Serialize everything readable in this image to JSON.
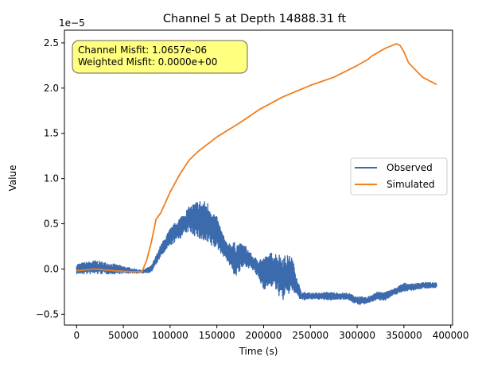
{
  "chart_data": {
    "type": "line",
    "title": "Channel 5 at Depth 14888.31 ft",
    "xlabel": "Time (s)",
    "ylabel": "Value",
    "y_offset_text": "1e−5",
    "xlim": [
      -13000,
      402000
    ],
    "ylim": [
      -0.62,
      2.64
    ],
    "x_ticks": [
      0,
      50000,
      100000,
      150000,
      200000,
      250000,
      300000,
      350000,
      400000
    ],
    "x_tick_labels": [
      "0",
      "50000",
      "100000",
      "150000",
      "200000",
      "250000",
      "300000",
      "350000",
      "400000"
    ],
    "y_ticks": [
      -0.5,
      0.0,
      0.5,
      1.0,
      1.5,
      2.0,
      2.5
    ],
    "y_tick_labels": [
      "−0.5",
      "0.0",
      "0.5",
      "1.0",
      "1.5",
      "2.0",
      "2.5"
    ],
    "grid": false,
    "legend_position": "center-right",
    "annotation": {
      "lines": [
        "Channel Misfit: 1.0657e-06",
        "Weighted Misfit: 0.0000e+00"
      ],
      "box_color": "#ffff80"
    },
    "series": [
      {
        "name": "Observed",
        "color": "#3b6aad",
        "style": "noisy",
        "x": [
          0,
          20000,
          40000,
          60000,
          70000,
          80000,
          90000,
          100000,
          110000,
          120000,
          130000,
          140000,
          150000,
          160000,
          170000,
          180000,
          190000,
          200000,
          210000,
          220000,
          230000,
          240000,
          250000,
          260000,
          270000,
          280000,
          290000,
          300000,
          310000,
          320000,
          330000,
          340000,
          350000,
          360000,
          370000,
          385000
        ],
        "y": [
          0.0,
          0.02,
          0.0,
          -0.02,
          -0.03,
          0.0,
          0.2,
          0.35,
          0.45,
          0.55,
          0.55,
          0.5,
          0.4,
          0.2,
          0.1,
          0.15,
          0.05,
          -0.05,
          0.0,
          -0.1,
          -0.05,
          -0.3,
          -0.3,
          -0.3,
          -0.3,
          -0.3,
          -0.3,
          -0.35,
          -0.35,
          -0.3,
          -0.3,
          -0.25,
          -0.2,
          -0.2,
          -0.18,
          -0.18
        ],
        "amp": [
          0.06,
          0.08,
          0.06,
          0.03,
          0.02,
          0.04,
          0.07,
          0.1,
          0.12,
          0.14,
          0.22,
          0.25,
          0.18,
          0.1,
          0.2,
          0.12,
          0.08,
          0.18,
          0.2,
          0.26,
          0.2,
          0.05,
          0.04,
          0.04,
          0.05,
          0.04,
          0.04,
          0.05,
          0.04,
          0.05,
          0.05,
          0.04,
          0.05,
          0.04,
          0.04,
          0.03
        ]
      },
      {
        "name": "Simulated",
        "color": "#f07f1e",
        "style": "smooth",
        "x": [
          0,
          20000,
          40000,
          60000,
          70000,
          75000,
          80000,
          85000,
          90000,
          100000,
          110000,
          120000,
          130000,
          150000,
          175000,
          195000,
          220000,
          250000,
          275000,
          300000,
          312000,
          315000,
          330000,
          342000,
          346000,
          350000,
          355000,
          370000,
          385000
        ],
        "y": [
          -0.02,
          0.0,
          -0.02,
          -0.03,
          -0.03,
          0.1,
          0.3,
          0.55,
          0.62,
          0.85,
          1.04,
          1.2,
          1.3,
          1.46,
          1.62,
          1.76,
          1.9,
          2.03,
          2.12,
          2.25,
          2.32,
          2.35,
          2.44,
          2.49,
          2.47,
          2.4,
          2.28,
          2.12,
          2.04
        ]
      }
    ]
  }
}
